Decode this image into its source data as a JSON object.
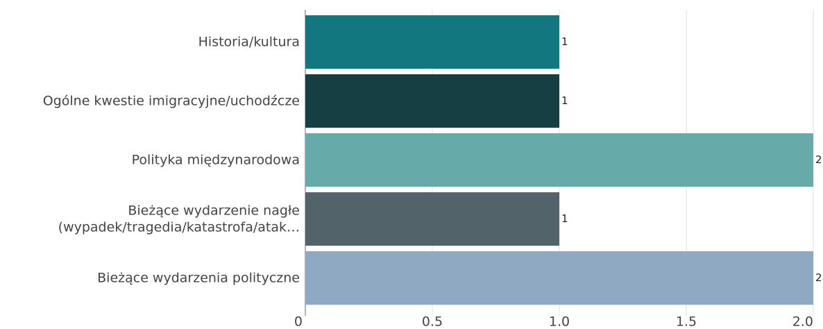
{
  "chart_data": {
    "type": "barh",
    "categories": [
      "Historia/kultura",
      "Ogólne kwestie imigracyjne/uchodźcze",
      "Polityka międzynarodowa",
      "Bieżące wydarzenie nagłe\n(wypadek/tragedia/katastrofa/atak…",
      "Bieżące wydarzenia polityczne"
    ],
    "values": [
      1,
      1,
      2,
      1,
      2
    ],
    "colors": [
      "#12777f",
      "#163f44",
      "#67aaaa",
      "#526469",
      "#8ea9c1"
    ],
    "xlim": [
      0,
      2
    ],
    "xticks": [
      0,
      0.5,
      {
        "value": 1,
        "label": "1.0"
      },
      1.5,
      {
        "value": 2,
        "label": "2.0"
      }
    ],
    "grid": true
  }
}
